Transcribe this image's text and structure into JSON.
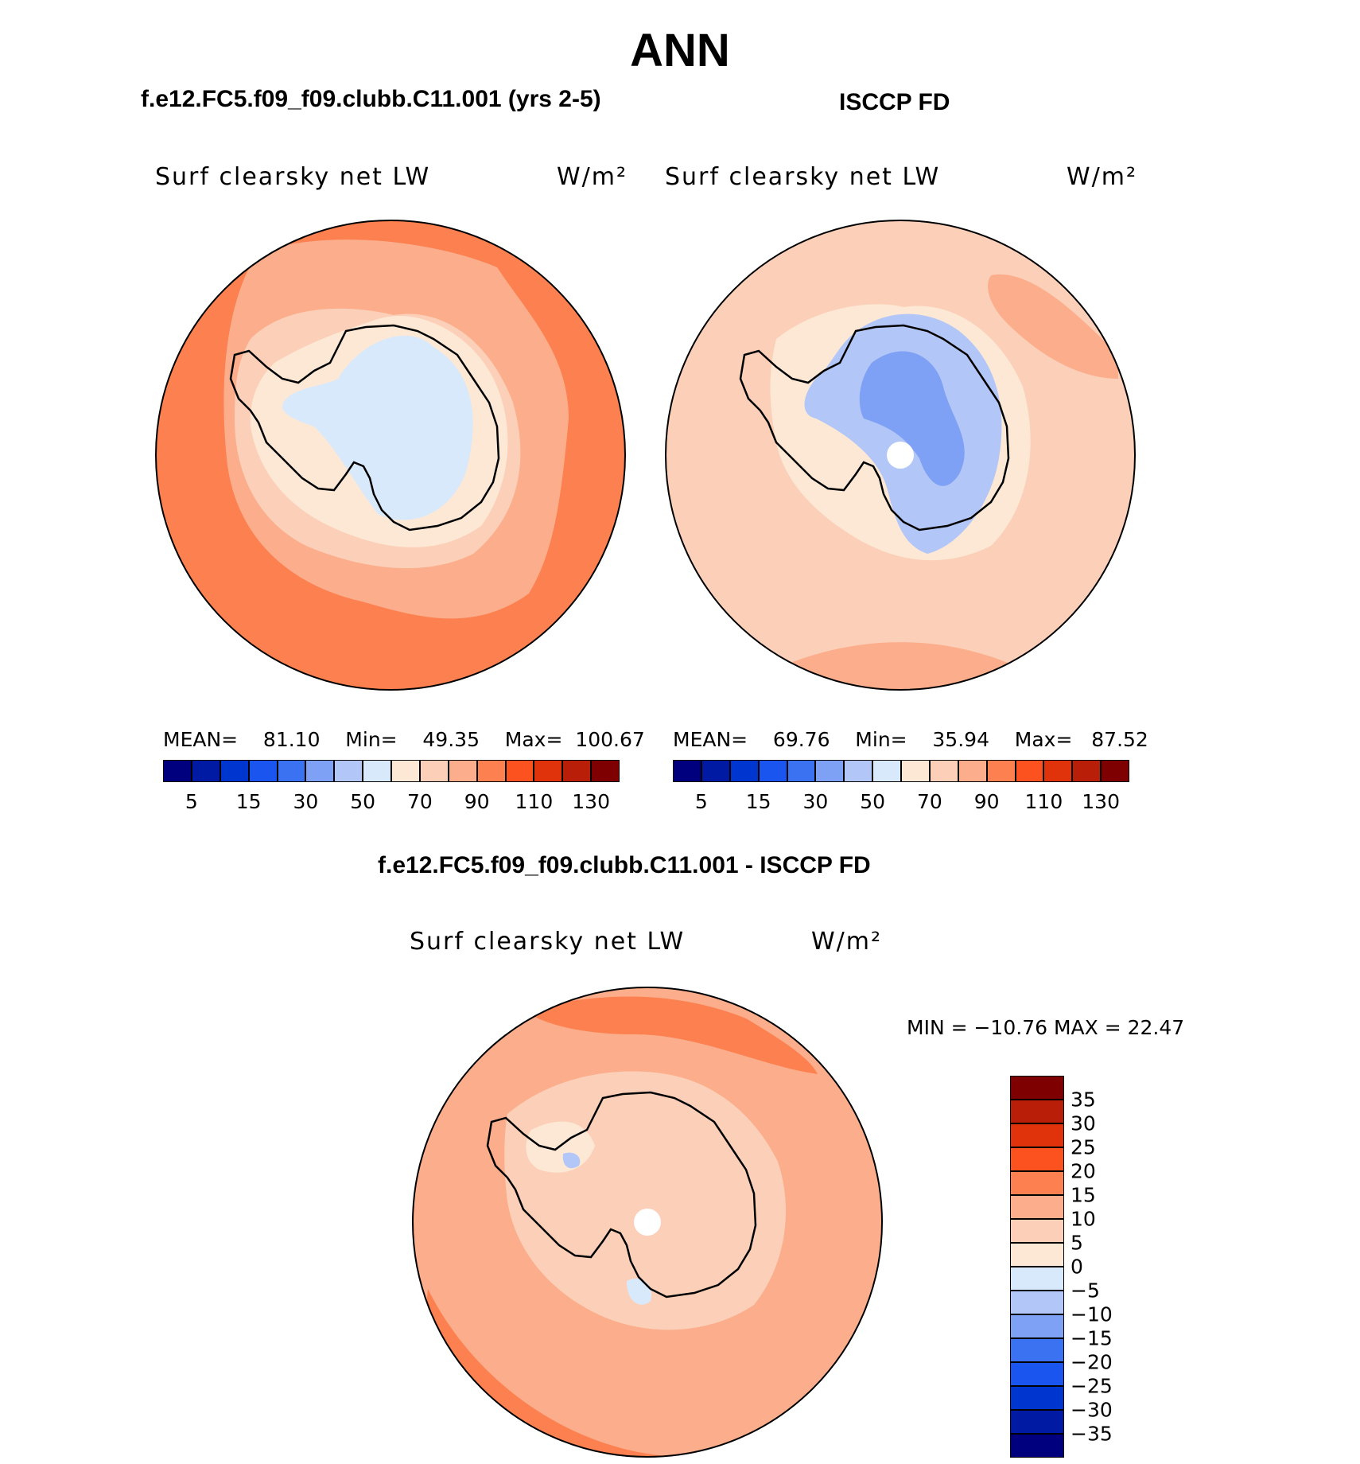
{
  "title": "ANN",
  "panels": {
    "model": {
      "case_title": "f.e12.FC5.f09_f09.clubb.C11.001 (yrs 2-5)",
      "variable": "Surf clearsky net LW",
      "units": "W/m²",
      "mean_label": "MEAN=",
      "mean": "81.10",
      "min_label": "Min=",
      "min": "49.35",
      "max_label": "Max=",
      "max": "100.67"
    },
    "obs": {
      "case_title": "ISCCP FD",
      "variable": "Surf clearsky net LW",
      "units": "W/m²",
      "mean_label": "MEAN=",
      "mean": "69.76",
      "min_label": "Min=",
      "min": "35.94",
      "max_label": "Max=",
      "max": "87.52"
    },
    "diff": {
      "case_title": "f.e12.FC5.f09_f09.clubb.C11.001 - ISCCP FD",
      "variable": "Surf clearsky net LW",
      "units": "W/m²",
      "minmax": "MIN = −10.76 MAX =   22.47"
    }
  },
  "colorbars": {
    "absolute": {
      "colors": [
        "#00007f",
        "#001aa3",
        "#0036d0",
        "#1b55f0",
        "#3b72f2",
        "#7ea0f5",
        "#b2c7f7",
        "#d8e9fb",
        "#fde8d6",
        "#fcd0b8",
        "#fcae8c",
        "#fc8050",
        "#fc5220",
        "#e0330c",
        "#b81e08",
        "#7e0000"
      ],
      "tick_labels": [
        "5",
        "15",
        "30",
        "50",
        "70",
        "90",
        "110",
        "130"
      ]
    },
    "difference": {
      "colors": [
        "#00007f",
        "#001aa3",
        "#0036d0",
        "#1b55f0",
        "#3b72f2",
        "#7ea0f5",
        "#b2c7f7",
        "#d8e9fb",
        "#fde8d6",
        "#fcd0b8",
        "#fcae8c",
        "#fc8050",
        "#fc5220",
        "#e0330c",
        "#b81e08",
        "#7e0000"
      ],
      "tick_labels": [
        "35",
        "30",
        "25",
        "20",
        "15",
        "10",
        "5",
        "0",
        "−5",
        "−10",
        "−15",
        "−20",
        "−25",
        "−30",
        "−35"
      ]
    }
  }
}
